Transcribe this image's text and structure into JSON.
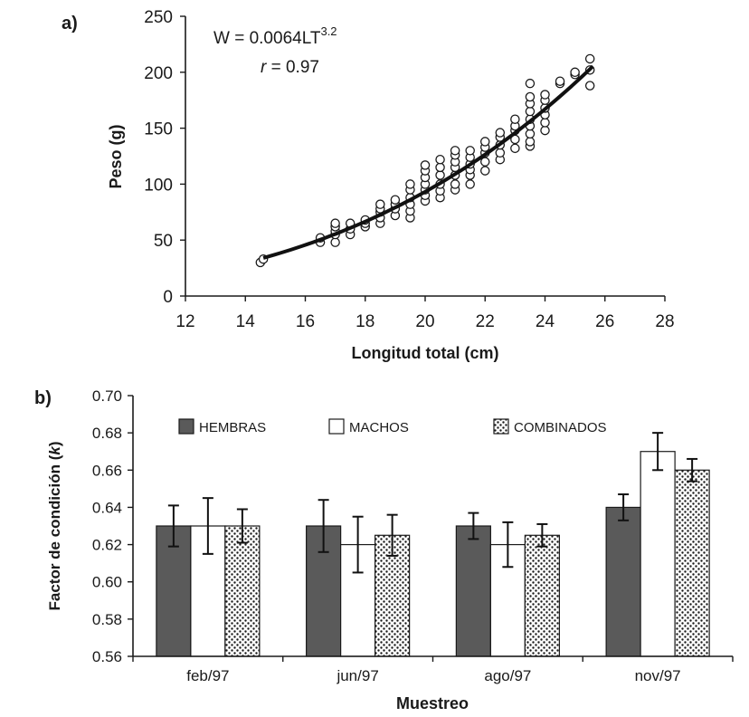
{
  "chart_data": [
    {
      "panel_label": "a)",
      "type": "scatter",
      "xlabel": "Longitud total (cm)",
      "ylabel": "Peso (g)",
      "xlim": [
        12,
        28
      ],
      "ylim": [
        0,
        250
      ],
      "xticks": [
        "12",
        "14",
        "16",
        "18",
        "20",
        "22",
        "24",
        "26",
        "28"
      ],
      "yticks": [
        "0",
        "50",
        "100",
        "150",
        "200",
        "250"
      ],
      "equation": {
        "prefix": "W = 0.0064LT",
        "exponent": "3.2"
      },
      "correlation": {
        "symbol": "r",
        "text": " = 0.97"
      },
      "fit": {
        "a": 0.0064,
        "b": 3.2,
        "x_range": [
          14.6,
          25.6
        ]
      },
      "points": [
        [
          14.5,
          30
        ],
        [
          14.6,
          33
        ],
        [
          16.5,
          48
        ],
        [
          16.5,
          52
        ],
        [
          17.0,
          48
        ],
        [
          17.0,
          55
        ],
        [
          17.0,
          58
        ],
        [
          17.0,
          62
        ],
        [
          17.0,
          65
        ],
        [
          17.5,
          55
        ],
        [
          17.5,
          60
        ],
        [
          17.5,
          65
        ],
        [
          18.0,
          62
        ],
        [
          18.0,
          65
        ],
        [
          18.0,
          68
        ],
        [
          18.5,
          65
        ],
        [
          18.5,
          70
        ],
        [
          18.5,
          75
        ],
        [
          18.5,
          78
        ],
        [
          18.5,
          82
        ],
        [
          19.0,
          72
        ],
        [
          19.0,
          78
        ],
        [
          19.0,
          82
        ],
        [
          19.0,
          86
        ],
        [
          19.5,
          70
        ],
        [
          19.5,
          76
        ],
        [
          19.5,
          82
        ],
        [
          19.5,
          88
        ],
        [
          19.5,
          95
        ],
        [
          19.5,
          100
        ],
        [
          20.0,
          85
        ],
        [
          20.0,
          90
        ],
        [
          20.0,
          95
        ],
        [
          20.0,
          100
        ],
        [
          20.0,
          106
        ],
        [
          20.0,
          112
        ],
        [
          20.0,
          117
        ],
        [
          20.5,
          88
        ],
        [
          20.5,
          94
        ],
        [
          20.5,
          100
        ],
        [
          20.5,
          108
        ],
        [
          20.5,
          115
        ],
        [
          20.5,
          122
        ],
        [
          21.0,
          95
        ],
        [
          21.0,
          100
        ],
        [
          21.0,
          108
        ],
        [
          21.0,
          115
        ],
        [
          21.0,
          120
        ],
        [
          21.0,
          126
        ],
        [
          21.0,
          130
        ],
        [
          21.5,
          100
        ],
        [
          21.5,
          108
        ],
        [
          21.5,
          113
        ],
        [
          21.5,
          118
        ],
        [
          21.5,
          124
        ],
        [
          21.5,
          130
        ],
        [
          22.0,
          112
        ],
        [
          22.0,
          120
        ],
        [
          22.0,
          128
        ],
        [
          22.0,
          133
        ],
        [
          22.0,
          138
        ],
        [
          22.5,
          122
        ],
        [
          22.5,
          128
        ],
        [
          22.5,
          135
        ],
        [
          22.5,
          142
        ],
        [
          22.5,
          146
        ],
        [
          23.0,
          132
        ],
        [
          23.0,
          140
        ],
        [
          23.0,
          148
        ],
        [
          23.0,
          152
        ],
        [
          23.0,
          158
        ],
        [
          23.5,
          134
        ],
        [
          23.5,
          138
        ],
        [
          23.5,
          145
        ],
        [
          23.5,
          152
        ],
        [
          23.5,
          158
        ],
        [
          23.5,
          165
        ],
        [
          23.5,
          172
        ],
        [
          23.5,
          178
        ],
        [
          23.5,
          190
        ],
        [
          24.0,
          148
        ],
        [
          24.0,
          155
        ],
        [
          24.0,
          162
        ],
        [
          24.0,
          168
        ],
        [
          24.0,
          175
        ],
        [
          24.0,
          180
        ],
        [
          24.5,
          190
        ],
        [
          24.5,
          192
        ],
        [
          25.0,
          198
        ],
        [
          25.0,
          200
        ],
        [
          25.5,
          188
        ],
        [
          25.5,
          202
        ],
        [
          25.5,
          212
        ]
      ]
    },
    {
      "panel_label": "b)",
      "type": "bar",
      "xlabel": "Muestreo",
      "ylabel": "Factor de condición (",
      "ylabel_var": "k",
      "ylabel_close": ")",
      "ylim": [
        0.56,
        0.7
      ],
      "yticks": [
        "0.70",
        "0.68",
        "0.66",
        "0.64",
        "0.62",
        "0.60",
        "0.58",
        "0.56"
      ],
      "categories": [
        "feb/97",
        "jun/97",
        "ago/97",
        "nov/97"
      ],
      "series": [
        {
          "name": "HEMBRAS",
          "color": "#5a5a5a",
          "fill": "solid",
          "values": [
            0.63,
            0.63,
            0.63,
            0.64
          ],
          "errors": [
            0.011,
            0.014,
            0.007,
            0.007
          ]
        },
        {
          "name": "MACHOS",
          "color": "#ffffff",
          "fill": "open",
          "values": [
            0.63,
            0.62,
            0.62,
            0.67
          ],
          "errors": [
            0.015,
            0.015,
            0.012,
            0.01
          ]
        },
        {
          "name": "COMBINADOS",
          "color": "#1a1a1a",
          "fill": "dotted",
          "values": [
            0.63,
            0.625,
            0.625,
            0.66
          ],
          "errors": [
            0.009,
            0.011,
            0.006,
            0.006
          ]
        }
      ]
    }
  ]
}
